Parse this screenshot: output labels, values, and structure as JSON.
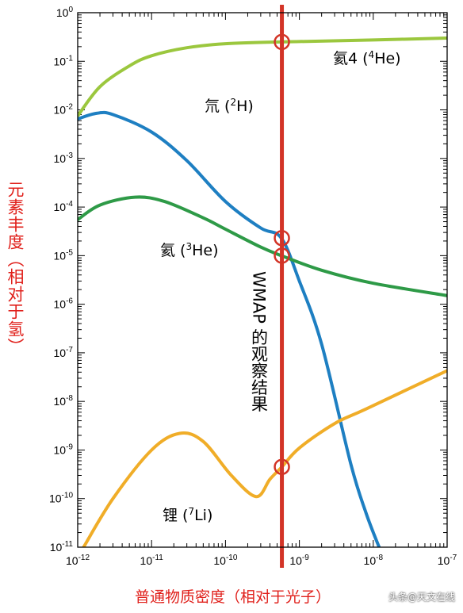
{
  "chart_data": {
    "type": "line",
    "xlabel": "普通物质密度（相对于光子）",
    "ylabel": "元素丰度（相对于氢）",
    "x_scale": "log",
    "y_scale": "log",
    "xlim": [
      1e-12,
      1e-07
    ],
    "ylim": [
      1e-11,
      1
    ],
    "x_tick_labels": [
      {
        "base": "10",
        "exp": "-12"
      },
      {
        "base": "10",
        "exp": "-11"
      },
      {
        "base": "10",
        "exp": "-10"
      },
      {
        "base": "10",
        "exp": "-9"
      },
      {
        "base": "10",
        "exp": "-8"
      },
      {
        "base": "10",
        "exp": "-7"
      }
    ],
    "y_tick_labels": [
      {
        "base": "10",
        "exp": "0"
      },
      {
        "base": "10",
        "exp": "-1"
      },
      {
        "base": "10",
        "exp": "-2"
      },
      {
        "base": "10",
        "exp": "-3"
      },
      {
        "base": "10",
        "exp": "-4"
      },
      {
        "base": "10",
        "exp": "-5"
      },
      {
        "base": "10",
        "exp": "-6"
      },
      {
        "base": "10",
        "exp": "-7"
      },
      {
        "base": "10",
        "exp": "-8"
      },
      {
        "base": "10",
        "exp": "-9"
      },
      {
        "base": "10",
        "exp": "-10"
      },
      {
        "base": "10",
        "exp": "-11"
      }
    ],
    "series": [
      {
        "name": "氦4 (4He)",
        "label_parts": {
          "pre": "氦4 (",
          "sup": "4",
          "post": "He)"
        },
        "color": "#9bc73e",
        "points": [
          [
            1e-12,
            0.0075
          ],
          [
            2e-12,
            0.03
          ],
          [
            5e-12,
            0.08
          ],
          [
            1e-11,
            0.13
          ],
          [
            3e-11,
            0.19
          ],
          [
            1e-10,
            0.23
          ],
          [
            5.5e-10,
            0.25
          ],
          [
            1e-09,
            0.255
          ],
          [
            1e-08,
            0.275
          ],
          [
            1e-07,
            0.3
          ]
        ]
      },
      {
        "name": "氘 (2H)",
        "label_parts": {
          "pre": "氘 (",
          "sup": "2",
          "post": "H)"
        },
        "color": "#1e7fc2",
        "points": [
          [
            1e-12,
            0.0065
          ],
          [
            1.8e-12,
            0.0085
          ],
          [
            3e-12,
            0.008
          ],
          [
            1e-11,
            0.0035
          ],
          [
            3e-11,
            0.0009
          ],
          [
            1e-10,
            0.00013
          ],
          [
            3e-10,
            3.7e-05
          ],
          [
            5.7e-10,
            2.3e-05
          ],
          [
            1e-09,
            3e-06
          ],
          [
            2e-09,
            1.5e-07
          ],
          [
            5e-09,
            5e-10
          ],
          [
            8e-09,
            5e-11
          ],
          [
            1.2e-08,
            1e-11
          ]
        ]
      },
      {
        "name": "氦 (3He)",
        "label_parts": {
          "pre": "氦 (",
          "sup": "3",
          "post": "He)"
        },
        "color": "#2e9a47",
        "points": [
          [
            1e-12,
            5.5e-05
          ],
          [
            2e-12,
            0.00011
          ],
          [
            6e-12,
            0.00016
          ],
          [
            1.5e-11,
            0.00013
          ],
          [
            5e-11,
            6e-05
          ],
          [
            1e-10,
            3.5e-05
          ],
          [
            3e-10,
            1.5e-05
          ],
          [
            5.7e-10,
            1e-05
          ],
          [
            2e-09,
            5e-06
          ],
          [
            1e-08,
            2.7e-06
          ],
          [
            1e-07,
            1.5e-06
          ]
        ]
      },
      {
        "name": "锂 (7Li)",
        "label_parts": {
          "pre": "锂 (",
          "sup": "7",
          "post": "Li)"
        },
        "color": "#f0ad28",
        "points": [
          [
            1.2e-12,
            1e-11
          ],
          [
            3e-12,
            1e-10
          ],
          [
            1e-11,
            1e-09
          ],
          [
            2.4e-11,
            2.2e-09
          ],
          [
            5e-11,
            1.5e-09
          ],
          [
            1.2e-10,
            3e-10
          ],
          [
            2.6e-10,
            1.1e-10
          ],
          [
            4e-10,
            2.5e-10
          ],
          [
            5.8e-10,
            4.5e-10
          ],
          [
            1e-09,
            1.1e-09
          ],
          [
            3e-09,
            3.5e-09
          ],
          [
            8e-09,
            7e-09
          ],
          [
            1e-07,
            4.3e-08
          ]
        ]
      }
    ],
    "wmap": {
      "x": 5.8e-10,
      "label": "WMAP 的观察结果",
      "color": "#d33427",
      "markers": [
        0.25,
        2.3e-05,
        1e-05,
        4.5e-10
      ]
    }
  },
  "watermark": "头条@天文在线"
}
